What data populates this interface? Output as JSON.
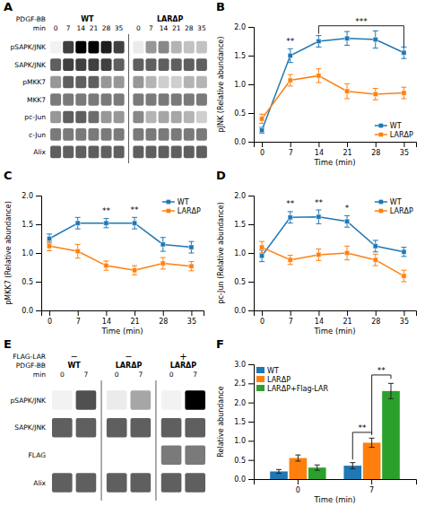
{
  "chart_data": [
    {
      "type": "heatmap",
      "title": "A",
      "annotations": [
        "PDGF-BB"
      ],
      "xlabel": "min",
      "categories": [
        "pSAPK/JNK",
        "SAPK/JNK",
        "pMKK7",
        "MKK7",
        "pc-Jun",
        "c-Jun",
        "Alix"
      ],
      "series": [
        {
          "name": "WT",
          "x": [
            0,
            7,
            14,
            21,
            28,
            35
          ],
          "values": [
            [
              0.1,
              0.8,
              1.0,
              1.0,
              0.9,
              0.8
            ],
            [
              0.7,
              0.8,
              0.8,
              0.8,
              0.8,
              0.7
            ],
            [
              0.5,
              0.7,
              0.7,
              0.7,
              0.5,
              0.5
            ],
            [
              0.6,
              0.6,
              0.6,
              0.6,
              0.6,
              0.6
            ],
            [
              0.5,
              0.7,
              0.7,
              0.65,
              0.5,
              0.5
            ],
            [
              0.6,
              0.6,
              0.6,
              0.6,
              0.6,
              0.6
            ],
            [
              0.7,
              0.7,
              0.7,
              0.7,
              0.7,
              0.7
            ]
          ]
        },
        {
          "name": "LARΔP",
          "x": [
            0,
            7,
            14,
            21,
            28,
            35
          ],
          "values": [
            [
              0.15,
              0.5,
              0.55,
              0.4,
              0.35,
              0.35
            ],
            [
              0.7,
              0.7,
              0.7,
              0.7,
              0.7,
              0.7
            ],
            [
              0.5,
              0.4,
              0.3,
              0.3,
              0.4,
              0.4
            ],
            [
              0.6,
              0.6,
              0.6,
              0.6,
              0.6,
              0.6
            ],
            [
              0.55,
              0.4,
              0.45,
              0.45,
              0.4,
              0.3
            ],
            [
              0.6,
              0.6,
              0.6,
              0.6,
              0.6,
              0.6
            ],
            [
              0.7,
              0.7,
              0.7,
              0.7,
              0.7,
              0.7
            ]
          ]
        }
      ]
    },
    {
      "type": "line",
      "title": "B",
      "xlabel": "Time (min)",
      "ylabel": "pJNK (Relative abundance)",
      "x": [
        0,
        7,
        14,
        21,
        28,
        35
      ],
      "xlim": [
        -2,
        38
      ],
      "xticks": [
        0,
        7,
        14,
        21,
        28,
        35
      ],
      "ylim": [
        0,
        2.0
      ],
      "yticks": [
        {
          "value": 0,
          "label": "0.0"
        },
        0.5,
        {
          "value": 1.0,
          "label": "1.0"
        },
        1.5,
        {
          "value": 2.0,
          "label": "2.0"
        }
      ],
      "legend": "lower right",
      "series": [
        {
          "name": "WT",
          "marker": "square",
          "values": [
            0.2,
            1.5,
            1.75,
            1.8,
            1.78,
            1.55
          ],
          "errors": [
            0.05,
            0.12,
            0.1,
            0.12,
            0.15,
            0.1
          ]
        },
        {
          "name": "LARΔP",
          "marker": "square",
          "values": [
            0.4,
            1.07,
            1.15,
            0.88,
            0.83,
            0.85
          ],
          "errors": [
            0.08,
            0.1,
            0.12,
            0.13,
            0.1,
            0.1
          ]
        }
      ],
      "annotations": [
        {
          "text": "**",
          "x": 7,
          "y": 1.69
        }
      ],
      "brackets": [
        {
          "text": "***",
          "x1": 14,
          "x2": 35,
          "y": 2.02,
          "y1": 1.88,
          "y2": 1.65
        }
      ]
    },
    {
      "type": "line",
      "title": "C",
      "xlabel": "Time (min)",
      "ylabel": "pMKK7 (Relative abundance)",
      "x": [
        0,
        7,
        14,
        21,
        28,
        35
      ],
      "xlim": [
        -2,
        38
      ],
      "xticks": [
        0,
        7,
        14,
        21,
        28,
        35
      ],
      "ylim": [
        0,
        2.0
      ],
      "yticks": [
        {
          "value": 0,
          "label": "0.0"
        },
        0.5,
        {
          "value": 1.0,
          "label": "1.0"
        },
        1.5,
        {
          "value": 2.0,
          "label": "2.0"
        }
      ],
      "legend": "upper right",
      "series": [
        {
          "name": "WT",
          "marker": "square",
          "values": [
            1.25,
            1.52,
            1.52,
            1.52,
            1.15,
            1.1
          ],
          "errors": [
            0.08,
            0.1,
            0.08,
            0.1,
            0.12,
            0.1
          ]
        },
        {
          "name": "LARΔP",
          "marker": "square",
          "values": [
            1.12,
            1.03,
            0.78,
            0.7,
            0.82,
            0.77
          ],
          "errors": [
            0.08,
            0.12,
            0.08,
            0.08,
            0.1,
            0.08
          ]
        }
      ],
      "annotations": [
        {
          "text": "**",
          "x": 14,
          "y": 1.67
        },
        {
          "text": "**",
          "x": 21,
          "y": 1.69
        }
      ]
    },
    {
      "type": "line",
      "title": "D",
      "xlabel": "Time (min)",
      "ylabel": "pc-Jun (Relative abundance)",
      "x": [
        0,
        7,
        14,
        21,
        28,
        35
      ],
      "xlim": [
        -2,
        38
      ],
      "xticks": [
        0,
        7,
        14,
        21,
        28,
        35
      ],
      "ylim": [
        0,
        2.0
      ],
      "yticks": [
        {
          "value": 0,
          "label": "0.0"
        },
        0.5,
        {
          "value": 1.0,
          "label": "1.0"
        },
        1.5,
        {
          "value": 2.0,
          "label": "2.0"
        }
      ],
      "legend": "upper right",
      "series": [
        {
          "name": "WT",
          "marker": "square",
          "values": [
            0.95,
            1.62,
            1.63,
            1.55,
            1.12,
            1.02
          ],
          "errors": [
            0.1,
            0.1,
            0.12,
            0.1,
            0.1,
            0.08
          ]
        },
        {
          "name": "LARΔP",
          "marker": "square",
          "values": [
            1.1,
            0.88,
            0.97,
            1.0,
            0.88,
            0.6
          ],
          "errors": [
            0.1,
            0.08,
            0.1,
            0.12,
            0.1,
            0.1
          ]
        }
      ],
      "annotations": [
        {
          "text": "**",
          "x": 7,
          "y": 1.79
        },
        {
          "text": "**",
          "x": 14,
          "y": 1.82
        },
        {
          "text": "*",
          "x": 21,
          "y": 1.72
        }
      ]
    },
    {
      "type": "heatmap",
      "title": "E",
      "annotations": [
        "FLAG-LAR",
        "PDGF-BB"
      ],
      "xlabel": "min",
      "categories": [
        "pSAPK/JNK",
        "SAPK/JNK",
        "FLAG",
        "Alix"
      ],
      "series": [
        {
          "name": "WT",
          "flag": "−",
          "x": [
            0,
            7
          ],
          "values": [
            [
              0.1,
              0.75
            ],
            [
              0.7,
              0.7
            ],
            [
              0.0,
              0.0
            ],
            [
              0.7,
              0.7
            ]
          ]
        },
        {
          "name": "LARΔP",
          "flag": "−",
          "x": [
            0,
            7
          ],
          "values": [
            [
              0.15,
              0.45
            ],
            [
              0.7,
              0.7
            ],
            [
              0.0,
              0.0
            ],
            [
              0.7,
              0.7
            ]
          ]
        },
        {
          "name": "LARΔP",
          "flag": "+",
          "x": [
            0,
            7
          ],
          "values": [
            [
              0.1,
              1.0
            ],
            [
              0.7,
              0.7
            ],
            [
              0.6,
              0.6
            ],
            [
              0.7,
              0.7
            ]
          ]
        }
      ]
    },
    {
      "type": "bar",
      "title": "F",
      "xlabel": "Time (min)",
      "ylabel": "Relative abundance",
      "categories": [
        "0",
        "7"
      ],
      "ylim": [
        0,
        3.0
      ],
      "yticks": [
        {
          "value": 0,
          "label": "0.0"
        },
        0.5,
        {
          "value": 1.0,
          "label": "1.0"
        },
        1.5,
        {
          "value": 2.0,
          "label": "2.0"
        },
        2.5,
        {
          "value": 3.0,
          "label": "3.0"
        }
      ],
      "legend": "upper left",
      "series": [
        {
          "name": "WT",
          "values": [
            0.2,
            0.35
          ],
          "errors": [
            0.05,
            0.08
          ]
        },
        {
          "name": "LARΔP",
          "values": [
            0.55,
            0.95
          ],
          "errors": [
            0.08,
            0.12
          ]
        },
        {
          "name": "LARΔP+Flag-LAR",
          "values": [
            0.3,
            2.3
          ],
          "errors": [
            0.07,
            0.2
          ]
        }
      ],
      "brackets": [
        {
          "text": "**",
          "category": "7",
          "series": [
            "LARΔP",
            "LARΔP+Flag-LAR"
          ],
          "y": 2.72,
          "y1": 1.19,
          "y2": 2.62
        },
        {
          "text": "**",
          "category": "7",
          "series": [
            "WT",
            "LARΔP"
          ],
          "y": 1.22,
          "y1": 0.51,
          "y2": 1.15
        }
      ]
    }
  ]
}
